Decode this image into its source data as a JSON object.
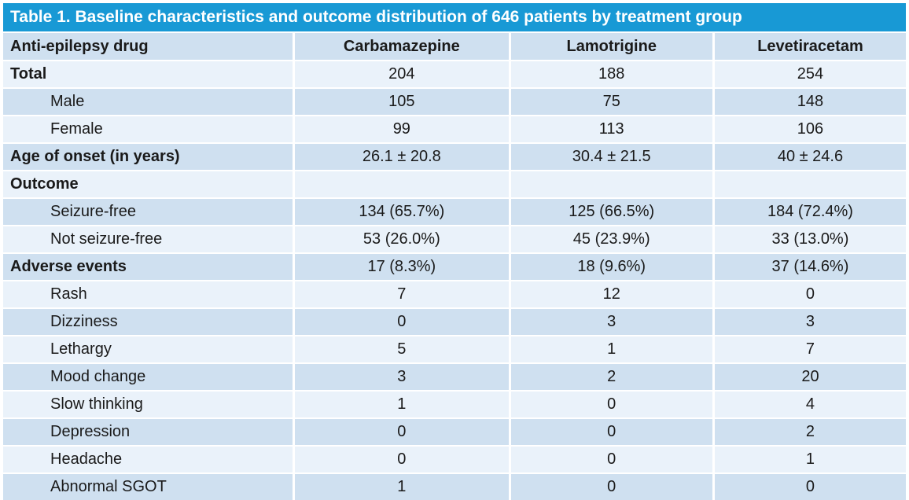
{
  "title": "Table 1. Baseline characteristics and outcome distribution of 646 patients by treatment group",
  "columns": {
    "label": "Anti-epilepsy drug",
    "drugs": [
      "Carbamazepine",
      "Lamotrigine",
      "Levetiracetam"
    ]
  },
  "rows": [
    {
      "label": "Total",
      "values": [
        "204",
        "188",
        "254"
      ]
    },
    {
      "label": "Male",
      "values": [
        "105",
        "75",
        "148"
      ]
    },
    {
      "label": "Female",
      "values": [
        "99",
        "113",
        "106"
      ]
    },
    {
      "label": "Age of onset (in years)",
      "values": [
        "26.1 ± 20.8",
        "30.4 ± 21.5",
        "40 ± 24.6"
      ]
    },
    {
      "label": "Outcome",
      "values": [
        "",
        "",
        ""
      ]
    },
    {
      "label": "Seizure-free",
      "values": [
        "134 (65.7%)",
        "125 (66.5%)",
        "184 (72.4%)"
      ]
    },
    {
      "label": "Not seizure-free",
      "values": [
        "53 (26.0%)",
        "45 (23.9%)",
        "33 (13.0%)"
      ]
    },
    {
      "label": "Adverse events",
      "values": [
        "17 (8.3%)",
        "18 (9.6%)",
        "37 (14.6%)"
      ]
    },
    {
      "label": "Rash",
      "values": [
        "7",
        "12",
        "0"
      ]
    },
    {
      "label": "Dizziness",
      "values": [
        "0",
        "3",
        "3"
      ]
    },
    {
      "label": "Lethargy",
      "values": [
        "5",
        "1",
        "7"
      ]
    },
    {
      "label": "Mood change",
      "values": [
        "3",
        "2",
        "20"
      ]
    },
    {
      "label": "Slow thinking",
      "values": [
        "1",
        "0",
        "4"
      ]
    },
    {
      "label": "Depression",
      "values": [
        "0",
        "0",
        "2"
      ]
    },
    {
      "label": "Headache",
      "values": [
        "0",
        "0",
        "1"
      ]
    },
    {
      "label": "Abnormal SGOT",
      "values": [
        "1",
        "0",
        "0"
      ]
    }
  ],
  "colors": {
    "title_bg": "#1899d5",
    "title_text": "#ffffff",
    "row_dark": "#cfe0f0",
    "row_light": "#eaf2fa",
    "grid": "#ffffff",
    "text": "#1a1a1a"
  }
}
